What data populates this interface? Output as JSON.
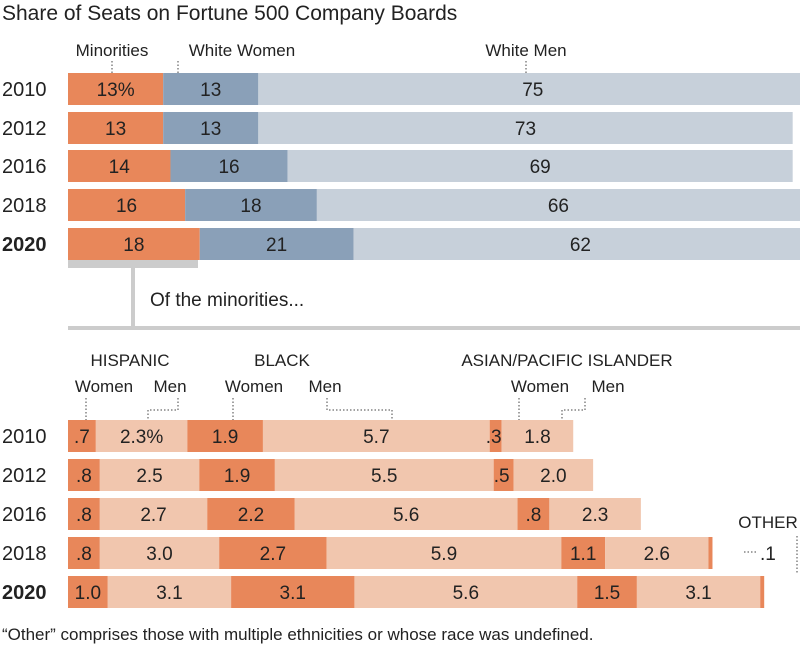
{
  "title": "Share of Seats on Fortune 500 Company Boards",
  "colors": {
    "minorities": "#e8875a",
    "white_women": "#8aa0b8",
    "white_men": "#c7d0da",
    "women_dark": "#e8875a",
    "men_light": "#f1c6ae",
    "divider": "#cccccc"
  },
  "chart_data": [
    {
      "type": "bar",
      "stacked": true,
      "orientation": "horizontal",
      "title": "Share of Seats on Fortune 500 Company Boards",
      "categories": [
        "2010",
        "2012",
        "2016",
        "2018",
        "2020"
      ],
      "series": [
        {
          "name": "Minorities",
          "values": [
            13,
            13,
            14,
            16,
            18
          ],
          "labels": [
            "13%",
            "13",
            "14",
            "16",
            "18"
          ]
        },
        {
          "name": "White Women",
          "values": [
            13,
            13,
            16,
            18,
            21
          ],
          "labels": [
            "13",
            "13",
            "16",
            "18",
            "21"
          ]
        },
        {
          "name": "White Men",
          "values": [
            75,
            73,
            69,
            66,
            62
          ],
          "labels": [
            "75",
            "73",
            "69",
            "66",
            "62"
          ]
        }
      ],
      "xlim": [
        0,
        100
      ]
    },
    {
      "type": "bar",
      "stacked": true,
      "orientation": "horizontal",
      "subtitle": "Of the minorities...",
      "categories": [
        "2010",
        "2012",
        "2016",
        "2018",
        "2020"
      ],
      "groups": [
        "HISPANIC",
        "BLACK",
        "ASIAN/PACIFIC ISLANDER",
        "OTHER"
      ],
      "series": [
        {
          "name": "Women",
          "group": "HISPANIC",
          "values": [
            0.7,
            0.8,
            0.8,
            0.8,
            1.0
          ],
          "labels": [
            ".7",
            ".8",
            ".8",
            ".8",
            "1.0"
          ]
        },
        {
          "name": "Men",
          "group": "HISPANIC",
          "values": [
            2.3,
            2.5,
            2.7,
            3.0,
            3.1
          ],
          "labels": [
            "2.3%",
            "2.5",
            "2.7",
            "3.0",
            "3.1"
          ]
        },
        {
          "name": "Women",
          "group": "BLACK",
          "values": [
            1.9,
            1.9,
            2.2,
            2.7,
            3.1
          ],
          "labels": [
            "1.9",
            "1.9",
            "2.2",
            "2.7",
            "3.1"
          ]
        },
        {
          "name": "Men",
          "group": "BLACK",
          "values": [
            5.7,
            5.5,
            5.6,
            5.9,
            5.6
          ],
          "labels": [
            "5.7",
            "5.5",
            "5.6",
            "5.9",
            "5.6"
          ]
        },
        {
          "name": "Women",
          "group": "ASIAN/PACIFIC ISLANDER",
          "values": [
            0.3,
            0.5,
            0.8,
            1.1,
            1.5
          ],
          "labels": [
            ".3",
            ".5",
            ".8",
            "1.1",
            "1.5"
          ]
        },
        {
          "name": "Men",
          "group": "ASIAN/PACIFIC ISLANDER",
          "values": [
            1.8,
            2.0,
            2.3,
            2.6,
            3.1
          ],
          "labels": [
            "1.8",
            "2.0",
            "2.3",
            "2.6",
            "3.1"
          ]
        },
        {
          "name": "OTHER",
          "group": "OTHER",
          "values": [
            0,
            0,
            0,
            0.1,
            0.1
          ],
          "labels": [
            "",
            "",
            "",
            ".1",
            ""
          ]
        }
      ]
    }
  ],
  "top_headers": {
    "minorities": "Minorities",
    "white_women": "White Women",
    "white_men": "White Men"
  },
  "sub_headers": {
    "hispanic": "HISPANIC",
    "black": "BLACK",
    "asian": "ASIAN/PACIFIC ISLANDER",
    "other": "OTHER",
    "women": "Women",
    "men": "Men"
  },
  "subtitle": "Of the minorities...",
  "footnote": "“Other” comprises those with multiple ethnicities or whose race was undefined.",
  "bold_year": "2020"
}
